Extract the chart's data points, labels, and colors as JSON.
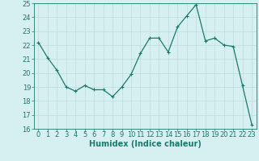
{
  "x": [
    0,
    1,
    2,
    3,
    4,
    5,
    6,
    7,
    8,
    9,
    10,
    11,
    12,
    13,
    14,
    15,
    16,
    17,
    18,
    19,
    20,
    21,
    22,
    23
  ],
  "y": [
    22.2,
    21.1,
    20.2,
    19.0,
    18.7,
    19.1,
    18.8,
    18.8,
    18.3,
    19.0,
    19.9,
    21.4,
    22.5,
    22.5,
    21.5,
    23.3,
    24.1,
    24.9,
    22.3,
    22.5,
    22.0,
    21.9,
    19.1,
    16.3
  ],
  "xlim": [
    -0.5,
    23.5
  ],
  "ylim": [
    16,
    25
  ],
  "yticks": [
    16,
    17,
    18,
    19,
    20,
    21,
    22,
    23,
    24,
    25
  ],
  "xticks": [
    0,
    1,
    2,
    3,
    4,
    5,
    6,
    7,
    8,
    9,
    10,
    11,
    12,
    13,
    14,
    15,
    16,
    17,
    18,
    19,
    20,
    21,
    22,
    23
  ],
  "xlabel": "Humidex (Indice chaleur)",
  "line_color": "#1a7a6e",
  "marker": "+",
  "marker_size": 3,
  "bg_color": "#d6eff0",
  "grid_color": "#b8d8d8",
  "label_color": "#1a7a6e",
  "tick_color": "#1a7a6e",
  "font_size_label": 7,
  "font_size_tick": 6,
  "linewidth": 0.9
}
